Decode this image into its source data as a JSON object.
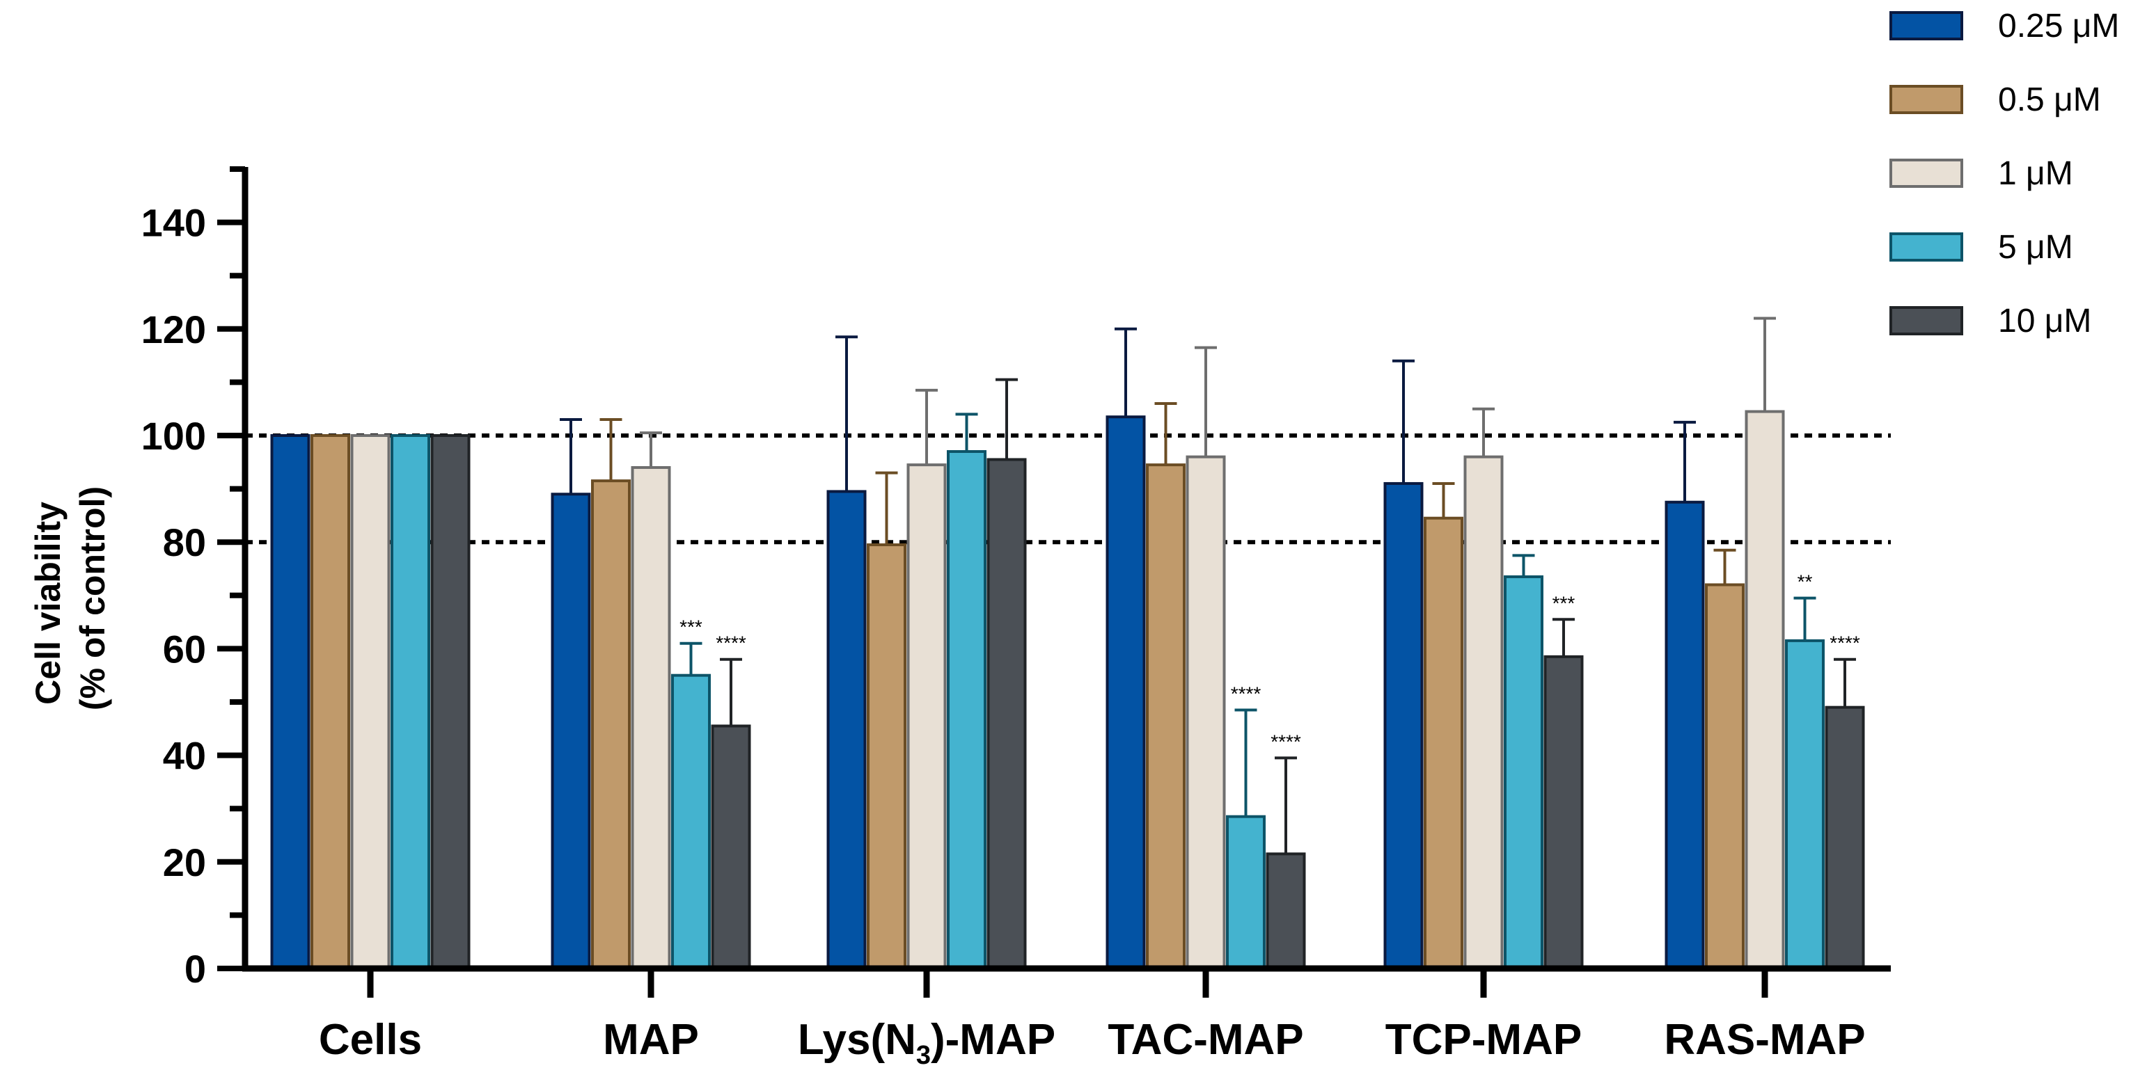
{
  "chart_data": {
    "type": "bar",
    "title": "",
    "xlabel": "",
    "ylabel_lines": [
      "Cell viability",
      "(% of control)"
    ],
    "ylim": [
      0,
      150
    ],
    "yticks": [
      0,
      20,
      40,
      60,
      80,
      100,
      120,
      140
    ],
    "ytick_labels": [
      "0",
      "20",
      "40",
      "60",
      "80",
      "100",
      "120",
      "140"
    ],
    "reference_lines": [
      100,
      80
    ],
    "categories": [
      {
        "label": "Cells",
        "parts": [
          {
            "t": "Cells"
          }
        ]
      },
      {
        "label": "MAP",
        "parts": [
          {
            "t": "MAP"
          }
        ]
      },
      {
        "label": "Lys(N3)-MAP",
        "parts": [
          {
            "t": "Lys(N"
          },
          {
            "t": "3",
            "sub": true
          },
          {
            "t": ")-MAP"
          }
        ]
      },
      {
        "label": "TAC-MAP",
        "parts": [
          {
            "t": "TAC-MAP"
          }
        ]
      },
      {
        "label": "TCP-MAP",
        "parts": [
          {
            "t": "TCP-MAP"
          }
        ]
      },
      {
        "label": "RAS-MAP",
        "parts": [
          {
            "t": "RAS-MAP"
          }
        ]
      }
    ],
    "series": [
      {
        "name": "0.25 μM",
        "fill": "#0353a4",
        "stroke": "#0a1a40",
        "err_color": "#0a1a40",
        "values": [
          100,
          89,
          89.5,
          103.5,
          91,
          87.5
        ],
        "errors": [
          0,
          14,
          29,
          16.5,
          23,
          15
        ],
        "sig": [
          "",
          "",
          "",
          "",
          "",
          ""
        ]
      },
      {
        "name": "0.5 μM",
        "fill": "#c09a6b",
        "stroke": "#6b4d24",
        "err_color": "#6b4d24",
        "values": [
          100,
          91.5,
          79.5,
          94.5,
          84.5,
          72
        ],
        "errors": [
          0,
          11.5,
          13.5,
          11.5,
          6.5,
          6.5
        ],
        "sig": [
          "",
          "",
          "",
          "",
          "",
          ""
        ]
      },
      {
        "name": "1 μM",
        "fill": "#e8e0d5",
        "stroke": "#6e6e6e",
        "err_color": "#6e6e6e",
        "values": [
          100,
          94,
          94.5,
          96,
          96,
          104.5
        ],
        "errors": [
          0,
          6.5,
          14,
          20.5,
          9,
          17.5
        ],
        "sig": [
          "",
          "",
          "",
          "",
          "",
          ""
        ]
      },
      {
        "name": "5 μM",
        "fill": "#44b3cf",
        "stroke": "#0d5468",
        "err_color": "#0d5468",
        "values": [
          100,
          55,
          97,
          28.5,
          73.5,
          61.5
        ],
        "errors": [
          0,
          6,
          7,
          20,
          4,
          8
        ],
        "sig": [
          "",
          "***",
          "",
          "****",
          "",
          "**"
        ]
      },
      {
        "name": "10 μM",
        "fill": "#4b5056",
        "stroke": "#202326",
        "err_color": "#202326",
        "values": [
          100,
          45.5,
          95.5,
          21.5,
          58.5,
          49
        ],
        "errors": [
          0,
          12.5,
          15,
          18,
          7,
          9
        ],
        "sig": [
          "",
          "****",
          "",
          "****",
          "***",
          "****"
        ]
      }
    ],
    "legend_position": "top-right"
  }
}
